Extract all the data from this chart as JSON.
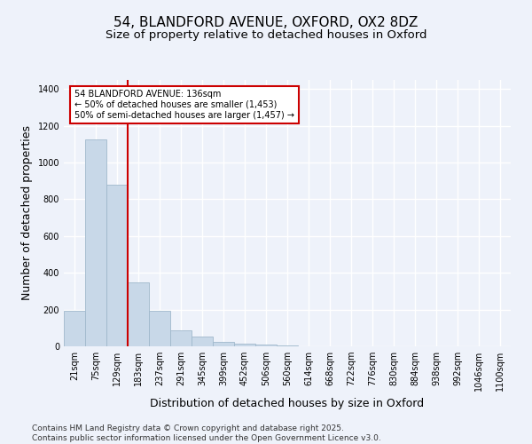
{
  "title1": "54, BLANDFORD AVENUE, OXFORD, OX2 8DZ",
  "title2": "Size of property relative to detached houses in Oxford",
  "xlabel": "Distribution of detached houses by size in Oxford",
  "ylabel": "Number of detached properties",
  "categories": [
    "21sqm",
    "75sqm",
    "129sqm",
    "183sqm",
    "237sqm",
    "291sqm",
    "345sqm",
    "399sqm",
    "452sqm",
    "506sqm",
    "560sqm",
    "614sqm",
    "668sqm",
    "722sqm",
    "776sqm",
    "830sqm",
    "884sqm",
    "938sqm",
    "992sqm",
    "1046sqm",
    "1100sqm"
  ],
  "values": [
    193,
    1127,
    878,
    350,
    195,
    87,
    55,
    22,
    15,
    8,
    4,
    0,
    0,
    0,
    0,
    0,
    0,
    0,
    0,
    0,
    0
  ],
  "bar_color": "#c8d8e8",
  "bar_edgecolor": "#a0b8cc",
  "vline_x": 2.5,
  "vline_color": "#cc0000",
  "annotation_text": "54 BLANDFORD AVENUE: 136sqm\n← 50% of detached houses are smaller (1,453)\n50% of semi-detached houses are larger (1,457) →",
  "annotation_box_color": "#cc0000",
  "annotation_bg": "#ffffff",
  "ylim": [
    0,
    1450
  ],
  "yticks": [
    0,
    200,
    400,
    600,
    800,
    1000,
    1200,
    1400
  ],
  "background_color": "#eef2fa",
  "grid_color": "#ffffff",
  "footer": "Contains HM Land Registry data © Crown copyright and database right 2025.\nContains public sector information licensed under the Open Government Licence v3.0.",
  "title_fontsize": 11,
  "subtitle_fontsize": 9.5,
  "axis_label_fontsize": 9,
  "tick_fontsize": 7,
  "footer_fontsize": 6.5,
  "annotation_fontsize": 7
}
